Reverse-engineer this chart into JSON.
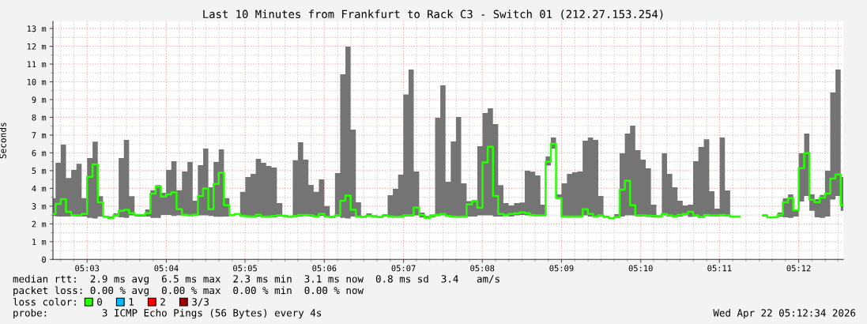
{
  "chart_data": {
    "type": "step",
    "title": "Last 10 Minutes from Frankfurt to Rack C3 - Switch 01 (212.27.153.254)",
    "ylabel": "Seconds",
    "x": [
      5.0428,
      5.0439,
      5.045,
      5.0461,
      5.0472,
      5.0483,
      5.0494,
      5.0506,
      5.0517,
      5.0528,
      5.0539,
      5.055,
      5.0561,
      5.0572,
      5.0583,
      5.0594,
      5.0606,
      5.0617,
      5.0628,
      5.0639,
      5.065,
      5.0661,
      5.0672,
      5.0683,
      5.0694,
      5.0706,
      5.0717,
      5.0728,
      5.0739,
      5.075,
      5.0761,
      5.0772,
      5.0783,
      5.0794,
      5.0806,
      5.0817,
      5.0828,
      5.0839,
      5.085,
      5.0861,
      5.0872,
      5.0883,
      5.0894,
      5.0906,
      5.0917,
      5.0928,
      5.0939,
      5.095,
      5.0961,
      5.0972,
      5.0983,
      5.0994,
      5.1006,
      5.1017,
      5.1028,
      5.1039,
      5.105,
      5.1061,
      5.1072,
      5.1083,
      5.1094,
      5.1106,
      5.1117,
      5.1128,
      5.1139,
      5.115,
      5.1161,
      5.1172,
      5.1183,
      5.1194,
      5.1206,
      5.1217,
      5.1228,
      5.1239,
      5.125,
      5.1261,
      5.1272,
      5.1283,
      5.1294,
      5.1306,
      5.1317,
      5.1328,
      5.1339,
      5.135,
      5.1361,
      5.1372,
      5.1383,
      5.1394,
      5.1406,
      5.1417,
      5.1428,
      5.1439,
      5.145,
      5.1461,
      5.1472,
      5.1483,
      5.1494,
      5.1506,
      5.1517,
      5.1528,
      5.1539,
      5.155,
      5.1561,
      5.1572,
      5.1583,
      5.1594,
      5.1606,
      5.1617,
      5.1628,
      5.1639,
      5.165,
      5.1661,
      5.1672,
      5.1683,
      5.1694,
      5.1706,
      5.1717,
      5.1728,
      5.1739,
      5.175,
      5.1761,
      5.1772,
      5.1783,
      5.1794,
      5.1806,
      5.1817,
      5.1828,
      5.1839,
      5.185,
      5.1861,
      5.1872,
      5.1883,
      5.1894,
      5.1906,
      5.1917,
      5.1928,
      5.1939,
      5.195,
      5.1961,
      5.1972,
      5.1983,
      5.1994,
      5.2006,
      5.2017,
      5.2028,
      5.2039,
      5.205,
      5.2061,
      5.2072,
      5.2083,
      5.2094
    ],
    "xlim": [
      5.0428,
      5.2094
    ],
    "xticks": [
      {
        "value": 5.0444,
        "label": null
      },
      {
        "value": 5.0472,
        "label": null
      },
      {
        "value": 5.05,
        "label": "05:03"
      },
      {
        "value": 5.0528,
        "label": null
      },
      {
        "value": 5.0556,
        "label": null
      },
      {
        "value": 5.0583,
        "label": null
      },
      {
        "value": 5.0611,
        "label": null
      },
      {
        "value": 5.0639,
        "label": null
      },
      {
        "value": 5.0667,
        "label": "05:04"
      },
      {
        "value": 5.0694,
        "label": null
      },
      {
        "value": 5.0722,
        "label": null
      },
      {
        "value": 5.075,
        "label": null
      },
      {
        "value": 5.0778,
        "label": null
      },
      {
        "value": 5.0806,
        "label": null
      },
      {
        "value": 5.0833,
        "label": "05:05"
      },
      {
        "value": 5.0861,
        "label": null
      },
      {
        "value": 5.0889,
        "label": null
      },
      {
        "value": 5.0917,
        "label": null
      },
      {
        "value": 5.0944,
        "label": null
      },
      {
        "value": 5.0972,
        "label": null
      },
      {
        "value": 5.1,
        "label": "05:06"
      },
      {
        "value": 5.1028,
        "label": null
      },
      {
        "value": 5.1056,
        "label": null
      },
      {
        "value": 5.1083,
        "label": null
      },
      {
        "value": 5.1111,
        "label": null
      },
      {
        "value": 5.1139,
        "label": null
      },
      {
        "value": 5.1167,
        "label": "05:07"
      },
      {
        "value": 5.1194,
        "label": null
      },
      {
        "value": 5.1222,
        "label": null
      },
      {
        "value": 5.125,
        "label": null
      },
      {
        "value": 5.1278,
        "label": null
      },
      {
        "value": 5.1306,
        "label": null
      },
      {
        "value": 5.1333,
        "label": "05:08"
      },
      {
        "value": 5.1361,
        "label": null
      },
      {
        "value": 5.1389,
        "label": null
      },
      {
        "value": 5.1417,
        "label": null
      },
      {
        "value": 5.1444,
        "label": null
      },
      {
        "value": 5.1472,
        "label": null
      },
      {
        "value": 5.15,
        "label": "05:09"
      },
      {
        "value": 5.1528,
        "label": null
      },
      {
        "value": 5.1556,
        "label": null
      },
      {
        "value": 5.1583,
        "label": null
      },
      {
        "value": 5.1611,
        "label": null
      },
      {
        "value": 5.1639,
        "label": null
      },
      {
        "value": 5.1667,
        "label": "05:10"
      },
      {
        "value": 5.1694,
        "label": null
      },
      {
        "value": 5.1722,
        "label": null
      },
      {
        "value": 5.175,
        "label": null
      },
      {
        "value": 5.1778,
        "label": null
      },
      {
        "value": 5.1806,
        "label": null
      },
      {
        "value": 5.1833,
        "label": "05:11"
      },
      {
        "value": 5.1861,
        "label": null
      },
      {
        "value": 5.1889,
        "label": null
      },
      {
        "value": 5.1917,
        "label": null
      },
      {
        "value": 5.1944,
        "label": null
      },
      {
        "value": 5.1972,
        "label": null
      },
      {
        "value": 5.2,
        "label": "05:12"
      },
      {
        "value": 5.2028,
        "label": null
      },
      {
        "value": 5.2056,
        "label": null
      },
      {
        "value": 5.2083,
        "label": null
      }
    ],
    "ylim": [
      0,
      13.4
    ],
    "yticks": [
      0,
      {
        "value": 0.5,
        "label": null
      },
      {
        "value": 1,
        "label": "1 m"
      },
      {
        "value": 1.5,
        "label": null
      },
      {
        "value": 2,
        "label": "2 m"
      },
      {
        "value": 2.5,
        "label": null
      },
      {
        "value": 3,
        "label": "3 m"
      },
      {
        "value": 3.5,
        "label": null
      },
      {
        "value": 4,
        "label": "4 m"
      },
      {
        "value": 4.5,
        "label": null
      },
      {
        "value": 5,
        "label": "5 m"
      },
      {
        "value": 5.5,
        "label": null
      },
      {
        "value": 6,
        "label": "6 m"
      },
      {
        "value": 6.5,
        "label": null
      },
      {
        "value": 7,
        "label": "7 m"
      },
      {
        "value": 7.5,
        "label": null
      },
      {
        "value": 8,
        "label": "8 m"
      },
      {
        "value": 8.5,
        "label": null
      },
      {
        "value": 9,
        "label": "9 m"
      },
      {
        "value": 9.5,
        "label": null
      },
      {
        "value": 10,
        "label": "10 m"
      },
      {
        "value": 10.5,
        "label": null
      },
      {
        "value": 11,
        "label": "11 m"
      },
      {
        "value": 11.5,
        "label": null
      },
      {
        "value": 12,
        "label": "12 m"
      },
      {
        "value": 12.5,
        "label": null
      },
      {
        "value": 13,
        "label": "13 m"
      }
    ],
    "grid": true,
    "legend": "bottom",
    "legend_title": "loss color:",
    "series": [
      {
        "name": "0",
        "color": "#26ff00",
        "values": [
          2.56,
          3.13,
          3.39,
          2.68,
          2.48,
          2.48,
          2.56,
          4.65,
          5.35,
          3.22,
          2.4,
          2.33,
          2.48,
          2.74,
          2.79,
          2.61,
          2.5,
          2.5,
          2.61,
          3.71,
          4.11,
          3.54,
          3.66,
          3.77,
          2.83,
          2.52,
          2.48,
          2.52,
          3.57,
          3.99,
          2.83,
          4.25,
          4.88,
          3.05,
          2.5,
          2.56,
          2.46,
          2.43,
          2.42,
          2.52,
          2.42,
          2.42,
          2.45,
          2.48,
          2.45,
          2.4,
          2.45,
          2.5,
          2.5,
          2.48,
          2.43,
          2.56,
          2.42,
          2.39,
          2.48,
          3.31,
          3.59,
          2.79,
          2.42,
          2.39,
          2.46,
          2.42,
          2.39,
          2.48,
          2.43,
          2.4,
          2.42,
          2.48,
          2.48,
          2.92,
          2.5,
          2.34,
          2.45,
          2.52,
          2.56,
          2.45,
          2.42,
          2.4,
          2.42,
          3.1,
          3.28,
          2.91,
          5.46,
          6.34,
          3.57,
          2.56,
          2.5,
          2.56,
          2.59,
          2.65,
          2.61,
          2.5,
          2.48,
          2.48,
          5.5,
          6.51,
          3.45,
          2.42,
          2.42,
          2.42,
          2.42,
          2.83,
          2.56,
          2.42,
          2.48,
          2.39,
          2.33,
          2.39,
          3.93,
          4.43,
          3.05,
          2.48,
          2.48,
          2.46,
          2.45,
          2.42,
          2.56,
          2.48,
          2.43,
          2.5,
          2.56,
          2.68,
          2.48,
          2.39,
          2.5,
          2.48,
          2.48,
          2.5,
          2.48,
          2.42,
          2.42,
          null,
          null,
          null,
          null,
          2.48,
          2.37,
          2.37,
          2.52,
          3.22,
          3.45,
          2.77,
          5.14,
          5.99,
          3.36,
          3.22,
          3.48,
          3.71,
          4.55,
          4.79,
          3.05
        ],
        "lower": [
          2.45,
          2.42,
          2.42,
          2.42,
          2.45,
          2.42,
          2.42,
          2.34,
          2.3,
          2.42,
          2.37,
          2.3,
          2.42,
          2.37,
          2.34,
          2.48,
          2.42,
          2.42,
          2.42,
          2.34,
          2.34,
          2.5,
          2.5,
          2.45,
          2.48,
          2.48,
          2.45,
          2.48,
          2.48,
          2.48,
          2.45,
          2.4,
          2.4,
          2.42,
          2.48,
          2.5,
          2.4,
          2.42,
          2.37,
          2.42,
          2.37,
          2.36,
          2.37,
          2.42,
          2.39,
          2.36,
          2.39,
          2.42,
          2.45,
          2.42,
          2.39,
          2.45,
          2.37,
          2.34,
          2.42,
          2.34,
          2.3,
          2.42,
          2.37,
          2.36,
          2.4,
          2.36,
          2.34,
          2.42,
          2.39,
          2.36,
          2.36,
          2.42,
          2.42,
          2.48,
          2.36,
          2.3,
          2.36,
          2.45,
          2.48,
          2.42,
          2.37,
          2.36,
          2.37,
          2.42,
          2.42,
          2.48,
          2.48,
          2.48,
          2.42,
          2.42,
          2.45,
          2.42,
          2.48,
          2.5,
          2.48,
          2.45,
          2.45,
          2.45,
          5.28,
          6.23,
          3.38,
          2.37,
          2.37,
          2.37,
          2.37,
          2.48,
          2.42,
          2.37,
          2.42,
          2.36,
          2.3,
          2.34,
          2.42,
          2.48,
          2.48,
          2.42,
          2.42,
          2.39,
          2.37,
          2.37,
          2.48,
          2.42,
          2.39,
          2.42,
          2.48,
          2.39,
          2.42,
          2.34,
          2.45,
          2.42,
          2.42,
          2.45,
          2.42,
          2.4,
          2.4,
          null,
          null,
          null,
          null,
          2.42,
          2.34,
          2.34,
          2.42,
          2.37,
          2.34,
          2.42,
          3.26,
          3.57,
          2.74,
          2.37,
          2.34,
          2.42,
          3.37,
          3.57,
          2.74
        ],
        "upper": [
          3.45,
          5.44,
          6.46,
          4.58,
          5.04,
          5.38,
          3.45,
          5.71,
          6.63,
          3.56,
          2.45,
          2.42,
          2.59,
          5.71,
          6.73,
          3.56,
          2.53,
          2.53,
          2.82,
          3.9,
          4.18,
          3.75,
          5.04,
          5.53,
          3.9,
          4.95,
          5.48,
          3.31,
          5.31,
          6.24,
          4.06,
          5.48,
          6.2,
          3.45,
          2.53,
          2.59,
          3.81,
          4.64,
          4.82,
          5.66,
          5.44,
          5.26,
          5.17,
          3.17,
          2.5,
          2.45,
          5.59,
          6.6,
          5.62,
          4.2,
          3.81,
          4.51,
          3.0,
          2.45,
          4.86,
          10.42,
          11.98,
          7.31,
          3.22,
          2.45,
          2.59,
          2.48,
          2.43,
          2.55,
          3.62,
          3.97,
          4.77,
          9.29,
          10.69,
          4.95,
          2.64,
          2.45,
          2.53,
          7.98,
          9.8,
          4.37,
          6.64,
          8.02,
          4.28,
          3.28,
          3.34,
          6.37,
          8.24,
          8.51,
          7.62,
          4.18,
          3.17,
          3.04,
          3.17,
          3.2,
          5.0,
          4.94,
          4.73,
          3.08,
          5.8,
          6.86,
          3.66,
          4.28,
          4.82,
          4.91,
          4.95,
          6.69,
          6.86,
          6.73,
          3.57,
          2.45,
          2.37,
          2.55,
          5.97,
          7.09,
          7.53,
          6.15,
          5.62,
          5.13,
          3.08,
          2.48,
          5.97,
          4.82,
          4.06,
          3.31,
          3.04,
          3.08,
          5.53,
          6.33,
          6.77,
          3.84,
          2.86,
          6.86,
          3.88,
          2.45,
          2.45,
          null,
          null,
          null,
          null,
          2.53,
          2.42,
          2.42,
          2.64,
          3.44,
          3.66,
          2.79,
          5.97,
          7.09,
          3.66,
          3.39,
          3.63,
          5.0,
          9.4,
          10.69,
          4.64
        ]
      },
      {
        "name": "1",
        "color": "#00b8ff",
        "values": [
          null,
          null,
          null,
          null,
          null,
          null,
          null,
          null,
          null,
          null,
          null,
          null,
          null,
          null,
          null,
          null,
          null,
          null,
          null,
          null,
          null,
          null,
          null,
          null,
          null,
          null,
          null,
          null,
          null,
          null,
          null,
          null,
          null,
          null,
          null,
          null,
          null,
          null,
          null,
          null,
          null,
          null,
          null,
          null,
          null,
          null,
          null,
          null,
          null,
          null,
          null,
          null,
          null,
          null,
          null,
          null,
          null,
          null,
          null,
          null,
          null,
          null,
          null,
          null,
          null,
          null,
          null,
          null,
          null,
          null,
          null,
          null,
          null,
          null,
          null,
          null,
          null,
          null,
          null,
          null,
          null,
          null,
          null,
          null,
          null,
          null,
          null,
          null,
          null,
          null,
          null,
          null,
          null,
          null,
          null,
          null,
          null,
          null,
          null,
          null,
          null,
          null,
          null,
          null,
          null,
          null,
          null,
          null,
          null,
          null,
          null,
          null,
          null,
          null,
          null,
          null,
          null,
          null,
          null,
          null,
          null,
          null,
          null,
          null,
          null,
          null,
          null,
          null,
          null,
          null,
          null,
          null,
          null,
          null,
          null,
          null,
          null,
          null,
          null,
          null,
          null,
          null,
          null,
          null,
          null,
          null,
          null,
          null,
          null,
          null,
          null
        ]
      },
      {
        "name": "2",
        "color": "#ff0000",
        "values": [
          null,
          null,
          null,
          null,
          null,
          null,
          null,
          null,
          null,
          null,
          null,
          null,
          null,
          null,
          null,
          null,
          null,
          null,
          null,
          null,
          null,
          null,
          null,
          null,
          null,
          null,
          null,
          null,
          null,
          null,
          null,
          null,
          null,
          null,
          null,
          null,
          null,
          null,
          null,
          null,
          null,
          null,
          null,
          null,
          null,
          null,
          null,
          null,
          null,
          null,
          null,
          null,
          null,
          null,
          null,
          null,
          null,
          null,
          null,
          null,
          null,
          null,
          null,
          null,
          null,
          null,
          null,
          null,
          null,
          null,
          null,
          null,
          null,
          null,
          null,
          null,
          null,
          null,
          null,
          null,
          null,
          null,
          null,
          null,
          null,
          null,
          null,
          null,
          null,
          null,
          null,
          null,
          null,
          null,
          null,
          null,
          null,
          null,
          null,
          null,
          null,
          null,
          null,
          null,
          null,
          null,
          null,
          null,
          null,
          null,
          null,
          null,
          null,
          null,
          null,
          null,
          null,
          null,
          null,
          null,
          null,
          null,
          null,
          null,
          null,
          null,
          null,
          null,
          null,
          null,
          null,
          null,
          null,
          null,
          null,
          null,
          null,
          null,
          null,
          null,
          null,
          null,
          null,
          null,
          null,
          null,
          null,
          null,
          null,
          null,
          null
        ]
      },
      {
        "name": "3/3",
        "color": "#a00000",
        "values": [
          null,
          null,
          null,
          null,
          null,
          null,
          null,
          null,
          null,
          null,
          null,
          null,
          null,
          null,
          null,
          null,
          null,
          null,
          null,
          null,
          null,
          null,
          null,
          null,
          null,
          null,
          null,
          null,
          null,
          null,
          null,
          null,
          null,
          null,
          null,
          null,
          null,
          null,
          null,
          null,
          null,
          null,
          null,
          null,
          null,
          null,
          null,
          null,
          null,
          null,
          null,
          null,
          null,
          null,
          null,
          null,
          null,
          null,
          null,
          null,
          null,
          null,
          null,
          null,
          null,
          null,
          null,
          null,
          null,
          null,
          null,
          null,
          null,
          null,
          null,
          null,
          null,
          null,
          null,
          null,
          null,
          null,
          null,
          null,
          null,
          null,
          null,
          null,
          null,
          null,
          null,
          null,
          null,
          null,
          null,
          null,
          null,
          null,
          null,
          null,
          null,
          null,
          null,
          null,
          null,
          null,
          null,
          null,
          null,
          null,
          null,
          null,
          null,
          null,
          null,
          null,
          null,
          null,
          null,
          null,
          null,
          null,
          null,
          null,
          null,
          null,
          null,
          null,
          null,
          null,
          null,
          null,
          null,
          null,
          null,
          null,
          null,
          null,
          null,
          null,
          null,
          null,
          null,
          null,
          null,
          null,
          null,
          null,
          null,
          null,
          null
        ]
      }
    ],
    "annotations": [
      "median rtt:  2.9 ms avg  6.5 ms max  2.3 ms min  3.1 ms now  0.8 ms sd  3.4   am/s",
      "packet loss: 0.00 % avg  0.00 % max  0.00 % min  0.00 % now",
      "probe:         3 ICMP Echo Pings (56 Bytes) every 4s",
      "Wed Apr 22 05:12:34 2026"
    ]
  }
}
